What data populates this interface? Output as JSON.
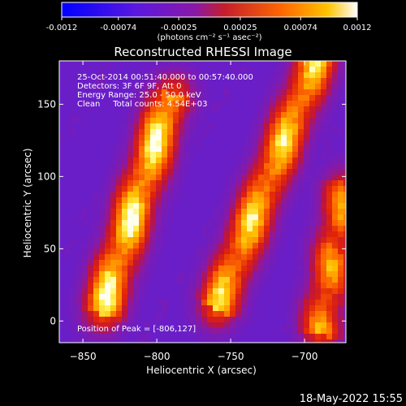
{
  "colorbar": {
    "tick_labels": [
      "-0.0012",
      "-0.00074",
      "-0.00025",
      "0.00025",
      "0.00074",
      "0.0012"
    ],
    "tick_values": [
      -0.0012,
      -0.00074,
      -0.00025,
      0.00025,
      0.00074,
      0.0012
    ],
    "range": [
      -0.0012,
      0.0012
    ],
    "unit_label": "(photons cm⁻² s⁻¹ asec⁻²)"
  },
  "chart_data": {
    "type": "heatmap",
    "title": "Reconstructed RHESSI Image",
    "xlabel": "Heliocentric X (arcsec)",
    "ylabel": "Heliocentric Y (arcsec)",
    "xlim": [
      -866,
      -672
    ],
    "ylim": [
      -15,
      180
    ],
    "x_ticks": [
      -850,
      -800,
      -750,
      -700
    ],
    "y_ticks": [
      0,
      50,
      100,
      150
    ],
    "x_tick_labels": [
      "−850",
      "−800",
      "−750",
      "−700"
    ],
    "y_tick_labels": [
      "0",
      "50",
      "100",
      "150"
    ],
    "grid": false,
    "peak": [
      -806,
      127
    ],
    "annotations": [
      "25-Oct-2014 00:51:40.000 to 00:57:40.000",
      "Detectors: 3F 6F 9F, Att 0",
      "Energy Range: 25.0 - 50.0 keV",
      "Clean     Total counts: 4.54E+03",
      "Position of Peak = [-806,127]"
    ],
    "bands": [
      {
        "x": [
          -838,
          -790
        ],
        "y": [
          5,
          158
        ],
        "peak": 1.0
      },
      {
        "x": [
          -760,
          -690
        ],
        "y": [
          8,
          185
        ],
        "peak": 0.9
      },
      {
        "x": [
          -690,
          -672
        ],
        "y": [
          -10,
          95
        ],
        "peak": 0.75
      }
    ]
  },
  "footer": {
    "date": "18-May-2022 15:55"
  }
}
